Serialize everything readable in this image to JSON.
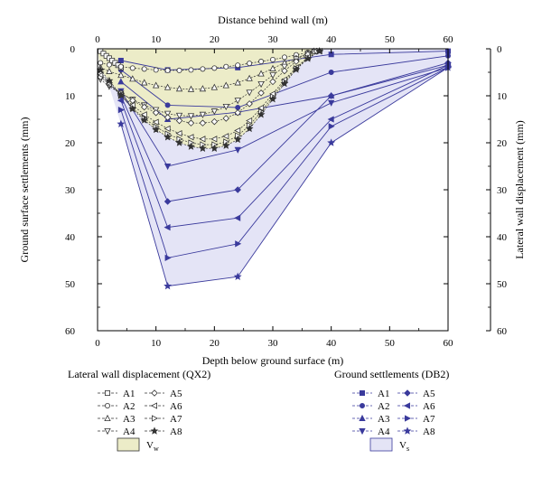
{
  "chart_data": {
    "type": "line",
    "top_xlabel": "Distance behind wall (m)",
    "bottom_xlabel": "Depth below ground surface (m)",
    "left_ylabel": "Ground surface settlements (mm)",
    "right_ylabel": "Lateral wall displacement (mm)",
    "xlim": [
      0,
      60
    ],
    "ylim": [
      0,
      60
    ],
    "x_ticks": [
      "0",
      "10",
      "20",
      "30",
      "40",
      "50",
      "60"
    ],
    "y_ticks": [
      "0",
      "10",
      "20",
      "30",
      "40",
      "50",
      "60"
    ],
    "y_inverted": true,
    "colors": {
      "wall": "#333333",
      "settlement": "#3a3a9c",
      "vw_fill": "#ececc8",
      "vs_fill": "#e4e4f6",
      "axis": "#000000"
    },
    "wall_series": [
      {
        "name": "A1",
        "marker": "square",
        "x": [
          0.5,
          1,
          1.5,
          2,
          2.5,
          3,
          3.5,
          4
        ],
        "y": [
          0.5,
          1,
          1.5,
          2,
          2.5,
          3,
          3.5,
          4
        ]
      },
      {
        "name": "A2",
        "marker": "circle",
        "x": [
          0.5,
          2,
          4,
          6,
          8,
          10,
          12,
          14,
          16,
          18,
          20,
          22,
          24,
          26,
          28,
          30,
          32,
          34,
          36,
          37
        ],
        "y": [
          3,
          3.4,
          3.8,
          4.1,
          4.3,
          4.5,
          4.6,
          4.6,
          4.5,
          4.3,
          4.1,
          3.8,
          3.5,
          3.1,
          2.7,
          2.3,
          1.8,
          1.3,
          0.8,
          0.5
        ]
      },
      {
        "name": "A3",
        "marker": "triangle-up",
        "x": [
          0.5,
          2,
          4,
          6,
          8,
          10,
          12,
          14,
          16,
          18,
          20,
          22,
          24,
          26,
          28,
          30,
          32,
          34,
          36,
          37
        ],
        "y": [
          4,
          4.8,
          5.6,
          6.4,
          7.2,
          7.8,
          8.2,
          8.5,
          8.6,
          8.5,
          8.2,
          7.8,
          7.2,
          6.3,
          5.3,
          4.2,
          3.0,
          2.0,
          1.0,
          0.5
        ]
      },
      {
        "name": "A4",
        "marker": "triangle-down",
        "x": [
          0.5,
          2,
          4,
          6,
          8,
          10,
          12,
          14,
          16,
          18,
          20,
          22,
          24,
          26,
          28,
          30,
          32,
          34,
          36,
          37.5
        ],
        "y": [
          6.5,
          8,
          9.5,
          10.8,
          12,
          13,
          13.8,
          14.2,
          14.3,
          14.0,
          13.3,
          12.3,
          11,
          9.3,
          7.5,
          5.6,
          3.8,
          2.2,
          1.0,
          0.5
        ]
      },
      {
        "name": "A5",
        "marker": "diamond",
        "x": [
          0.5,
          2,
          4,
          6,
          8,
          10,
          12,
          14,
          16,
          18,
          20,
          22,
          24,
          26,
          28,
          30,
          32,
          34,
          36,
          37.5
        ],
        "y": [
          6,
          7.6,
          9.4,
          11,
          12.4,
          13.6,
          14.6,
          15.3,
          15.8,
          15.8,
          15.5,
          14.8,
          13.6,
          11.7,
          9.4,
          7,
          4.7,
          2.7,
          1.2,
          0.5
        ]
      },
      {
        "name": "A6",
        "marker": "triangle-left",
        "x": [
          0.5,
          2,
          4,
          6,
          8,
          10,
          12,
          14,
          16,
          18,
          20,
          22,
          24,
          26,
          28,
          30,
          32,
          34,
          36,
          38
        ],
        "y": [
          5.5,
          7.5,
          9.8,
          12,
          14,
          15.6,
          17,
          18,
          18.8,
          19.2,
          19.2,
          18.6,
          17.4,
          15.3,
          12.6,
          9.6,
          6.6,
          4.0,
          1.8,
          0.5
        ]
      },
      {
        "name": "A7",
        "marker": "triangle-right",
        "x": [
          0.5,
          2,
          4,
          6,
          8,
          10,
          12,
          14,
          16,
          18,
          20,
          22,
          24,
          26,
          28,
          30,
          32,
          34,
          36,
          38
        ],
        "y": [
          5,
          7.2,
          10,
          12.6,
          14.8,
          16.6,
          18.1,
          19.2,
          20,
          20.4,
          20.4,
          19.8,
          18.5,
          16.3,
          13.4,
          10.2,
          7,
          4.2,
          2,
          0.5
        ]
      },
      {
        "name": "A8",
        "marker": "star",
        "x": [
          0.5,
          2,
          4,
          6,
          8,
          10,
          12,
          14,
          16,
          18,
          20,
          22,
          24,
          26,
          28,
          30,
          32,
          34,
          36,
          38
        ],
        "y": [
          4.5,
          6.8,
          9.8,
          12.8,
          15.2,
          17.2,
          18.8,
          20.0,
          20.8,
          21.2,
          21.2,
          20.6,
          19.3,
          17.0,
          14.0,
          10.7,
          7.4,
          4.4,
          2.1,
          0.5
        ]
      }
    ],
    "settlement_series": [
      {
        "name": "A1",
        "marker": "square",
        "x": [
          4,
          12,
          24,
          40,
          60
        ],
        "y": [
          2.5,
          4.5,
          4,
          1.2,
          0.5
        ]
      },
      {
        "name": "A2",
        "marker": "circle",
        "x": [
          4,
          12,
          24,
          40,
          60
        ],
        "y": [
          4.5,
          12,
          12.5,
          5,
          1.5
        ]
      },
      {
        "name": "A3",
        "marker": "triangle-up",
        "x": [
          4,
          12,
          24,
          40,
          60
        ],
        "y": [
          7,
          15,
          13.5,
          10,
          3.5
        ]
      },
      {
        "name": "A4",
        "marker": "triangle-down",
        "x": [
          4,
          12,
          24,
          40,
          60
        ],
        "y": [
          9,
          25,
          21.5,
          11.5,
          4
        ]
      },
      {
        "name": "A5",
        "marker": "diamond",
        "x": [
          4,
          12,
          24,
          40,
          60
        ],
        "y": [
          10,
          32.5,
          30,
          10,
          3
        ]
      },
      {
        "name": "A6",
        "marker": "triangle-left",
        "x": [
          4,
          12,
          24,
          40,
          60
        ],
        "y": [
          11,
          38,
          36,
          15,
          3.5
        ]
      },
      {
        "name": "A7",
        "marker": "triangle-right",
        "x": [
          4,
          12,
          24,
          40,
          60
        ],
        "y": [
          13,
          44.5,
          41.5,
          16.5,
          4
        ]
      },
      {
        "name": "A8",
        "marker": "star",
        "x": [
          4,
          12,
          24,
          40,
          60
        ],
        "y": [
          16,
          50.5,
          48.5,
          20,
          4
        ]
      }
    ]
  },
  "legend": {
    "wall_title": "Lateral wall displacement (QX2)",
    "settlement_title": "Ground settlements (DB2)",
    "wall_left": [
      "A1",
      "A2",
      "A3",
      "A4"
    ],
    "wall_right": [
      "A5",
      "A6",
      "A7",
      "A8"
    ],
    "settlement_left": [
      "A1",
      "A2",
      "A3",
      "A4"
    ],
    "settlement_right": [
      "A5",
      "A6",
      "A7",
      "A8"
    ],
    "vw_main": "V",
    "vw_sub": "w",
    "vs_main": "V",
    "vs_sub": "s"
  }
}
